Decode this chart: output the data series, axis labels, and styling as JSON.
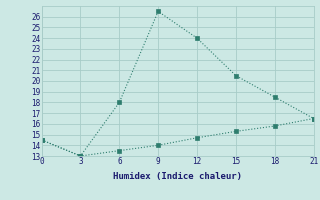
{
  "line1_x": [
    0,
    3,
    6,
    9,
    12,
    15,
    18,
    21
  ],
  "line1_y": [
    14.5,
    13,
    18,
    26.5,
    24,
    20.5,
    18.5,
    16.5
  ],
  "line2_x": [
    0,
    3,
    6,
    9,
    12,
    15,
    18,
    21
  ],
  "line2_y": [
    14.5,
    13,
    13.5,
    14.0,
    14.7,
    15.3,
    15.8,
    16.5
  ],
  "line_color": "#2e7d6e",
  "bg_color": "#cce8e4",
  "grid_color": "#a8ccc8",
  "xlabel": "Humidex (Indice chaleur)",
  "ylim": [
    13,
    27
  ],
  "xlim": [
    0,
    21
  ],
  "yticks": [
    13,
    14,
    15,
    16,
    17,
    18,
    19,
    20,
    21,
    22,
    23,
    24,
    25,
    26
  ],
  "xticks": [
    0,
    3,
    6,
    9,
    12,
    15,
    18,
    21
  ],
  "marker": "s",
  "marker_size": 2.5,
  "linewidth": 0.8
}
